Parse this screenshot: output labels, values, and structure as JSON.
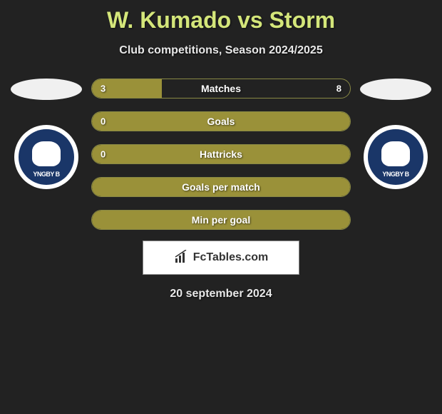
{
  "title": "W. Kumado vs Storm",
  "subtitle": "Club competitions, Season 2024/2025",
  "player_left": {
    "club_text": "YNGBY B",
    "club_bg": "#1a3668",
    "club_fg": "#ffffff"
  },
  "player_right": {
    "club_text": "YNGBY B",
    "club_bg": "#1a3668",
    "club_fg": "#ffffff"
  },
  "stats": [
    {
      "label": "Matches",
      "left_value": "3",
      "right_value": "8",
      "fill_pct": 27,
      "fill_color": "#9a9139",
      "border_color": "#888844",
      "show_left": true,
      "show_right": true
    },
    {
      "label": "Goals",
      "left_value": "0",
      "right_value": "",
      "fill_pct": 100,
      "fill_color": "#9a9139",
      "border_color": "#888844",
      "show_left": true,
      "show_right": false
    },
    {
      "label": "Hattricks",
      "left_value": "0",
      "right_value": "",
      "fill_pct": 100,
      "fill_color": "#9a9139",
      "border_color": "#888844",
      "show_left": true,
      "show_right": false
    },
    {
      "label": "Goals per match",
      "left_value": "",
      "right_value": "",
      "fill_pct": 100,
      "fill_color": "#9a9139",
      "border_color": "#888844",
      "show_left": false,
      "show_right": false
    },
    {
      "label": "Min per goal",
      "left_value": "",
      "right_value": "",
      "fill_pct": 100,
      "fill_color": "#9a9139",
      "border_color": "#888844",
      "show_left": false,
      "show_right": false
    }
  ],
  "banner": {
    "text": "FcTables.com",
    "bg": "#ffffff",
    "fg": "#333333"
  },
  "date": "20 september 2024",
  "colors": {
    "page_bg": "#222222",
    "title_color": "#d4e67a",
    "text_color": "#e8e8e8",
    "avatar_oval": "#f0f0f0"
  }
}
